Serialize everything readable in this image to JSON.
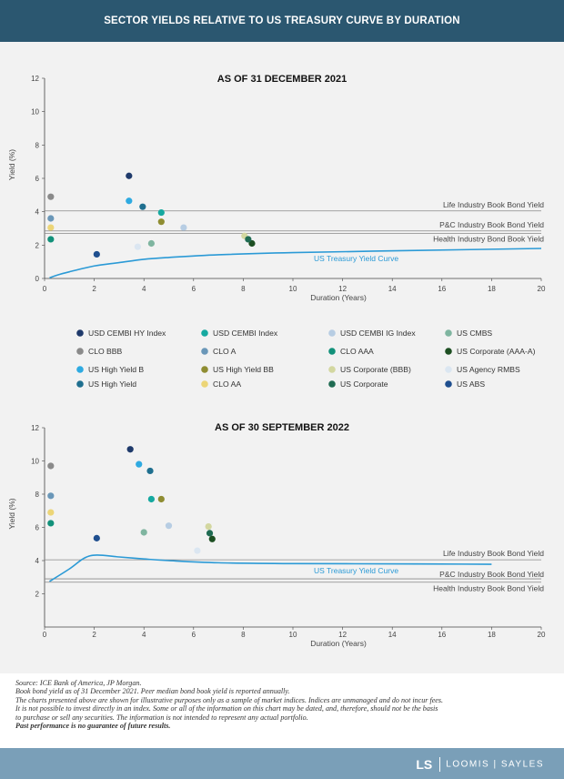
{
  "header": {
    "title": "SECTOR YIELDS RELATIVE TO US TREASURY CURVE BY DURATION"
  },
  "colors": {
    "header_bg": "#2b5770",
    "panel_bg": "#f2f2f2",
    "footer_bg": "#7a9fb8",
    "treasury_curve": "#2b9ad6",
    "reference_line": "#888888"
  },
  "sectors": [
    {
      "name": "USD CEMBI  HY Index",
      "color": "#1f3a6b"
    },
    {
      "name": "USD CEMBI Index",
      "color": "#16a9a0"
    },
    {
      "name": "USD CEMBI IG Index",
      "color": "#b7cde3"
    },
    {
      "name": "US CMBS",
      "color": "#7fb5a0"
    },
    {
      "name": "CLO BBB",
      "color": "#8a8a8a"
    },
    {
      "name": "CLO A",
      "color": "#6a97b8"
    },
    {
      "name": "CLO AAA",
      "color": "#12917a"
    },
    {
      "name": "US Corporate (AAA-A)",
      "color": "#1d4f22"
    },
    {
      "name": "US High Yield B",
      "color": "#2eaae1"
    },
    {
      "name": "US High Yield BB",
      "color": "#8f8d32"
    },
    {
      "name": "US Corporate (BBB)",
      "color": "#d3d7a0"
    },
    {
      "name": "US Agency RMBS",
      "color": "#dbe6f1"
    },
    {
      "name": "US High Yield",
      "color": "#1f6f8f"
    },
    {
      "name": "CLO AA",
      "color": "#ecd577"
    },
    {
      "name": "US Corporate",
      "color": "#1f6b52"
    },
    {
      "name": "US ABS",
      "color": "#1f4f8f"
    }
  ],
  "chart_data": [
    {
      "type": "scatter",
      "title": "AS OF 31 DECEMBER 2021",
      "xlabel": "Duration (Years)",
      "ylabel": "Yield (%)",
      "xlim": [
        0,
        20
      ],
      "ylim": [
        0,
        12
      ],
      "xticks": [
        "0",
        "2",
        "4",
        "6",
        "8",
        "10",
        "12",
        "14",
        "16",
        "18",
        "20"
      ],
      "yticks": [
        "0",
        "2",
        "4",
        "6",
        "8",
        "10",
        "12"
      ],
      "reference_lines": [
        {
          "label": "Life Industry Book Bond Yield",
          "y": 4.05
        },
        {
          "label": "P&C Industry Book Bond Yield",
          "y": 2.85
        },
        {
          "label": "Health Industry Bond Book Yield",
          "y": 2.7
        }
      ],
      "curve_label": "US Treasury Yield Curve",
      "treasury_curve": [
        [
          0.2,
          0.04
        ],
        [
          0.5,
          0.2
        ],
        [
          1,
          0.4
        ],
        [
          2,
          0.75
        ],
        [
          3,
          0.95
        ],
        [
          4,
          1.15
        ],
        [
          5,
          1.26
        ],
        [
          7,
          1.42
        ],
        [
          10,
          1.55
        ],
        [
          15,
          1.68
        ],
        [
          20,
          1.8
        ]
      ],
      "points": [
        {
          "sector": "USD CEMBI  HY Index",
          "x": 3.4,
          "y": 6.15
        },
        {
          "sector": "USD CEMBI Index",
          "x": 4.7,
          "y": 3.95
        },
        {
          "sector": "USD CEMBI IG Index",
          "x": 5.6,
          "y": 3.05
        },
        {
          "sector": "US CMBS",
          "x": 4.3,
          "y": 2.1
        },
        {
          "sector": "CLO BBB",
          "x": 0.25,
          "y": 4.9
        },
        {
          "sector": "CLO A",
          "x": 0.25,
          "y": 3.6
        },
        {
          "sector": "CLO AAA",
          "x": 0.25,
          "y": 2.35
        },
        {
          "sector": "US Corporate (AAA-A)",
          "x": 8.35,
          "y": 2.1
        },
        {
          "sector": "US High Yield B",
          "x": 3.4,
          "y": 4.65
        },
        {
          "sector": "US High Yield BB",
          "x": 4.7,
          "y": 3.4
        },
        {
          "sector": "US Corporate (BBB)",
          "x": 8.05,
          "y": 2.55
        },
        {
          "sector": "US Agency RMBS",
          "x": 3.75,
          "y": 1.9
        },
        {
          "sector": "US High Yield",
          "x": 3.95,
          "y": 4.3
        },
        {
          "sector": "CLO AA",
          "x": 0.25,
          "y": 3.05
        },
        {
          "sector": "US Corporate",
          "x": 8.2,
          "y": 2.35
        },
        {
          "sector": "US ABS",
          "x": 2.1,
          "y": 1.45
        }
      ]
    },
    {
      "type": "scatter",
      "title": "AS OF 30 SEPTEMBER 2022",
      "xlabel": "Duration (Years)",
      "ylabel": "Yield (%)",
      "xlim": [
        0,
        20
      ],
      "ylim": [
        0,
        12
      ],
      "xticks": [
        "0",
        "2",
        "4",
        "6",
        "8",
        "10",
        "12",
        "14",
        "16",
        "18",
        "20"
      ],
      "yticks": [
        "2",
        "4",
        "6",
        "8",
        "10",
        "12"
      ],
      "reference_lines": [
        {
          "label": "Life Industry Book Bond Yield",
          "y": 4.05
        },
        {
          "label": "P&C Industry Book Bond Yield",
          "y": 2.9
        },
        {
          "label": "Health Industry Book Bond Yield",
          "y": 2.7
        }
      ],
      "curve_label": "US Treasury Yield Curve",
      "treasury_curve": [
        [
          0.2,
          2.75
        ],
        [
          1,
          3.5
        ],
        [
          1.6,
          4.15
        ],
        [
          2.1,
          4.33
        ],
        [
          3,
          4.22
        ],
        [
          4,
          4.1
        ],
        [
          5,
          4.0
        ],
        [
          7,
          3.87
        ],
        [
          10,
          3.82
        ],
        [
          15,
          3.8
        ],
        [
          18,
          3.78
        ]
      ],
      "points": [
        {
          "sector": "USD CEMBI  HY Index",
          "x": 3.45,
          "y": 10.7
        },
        {
          "sector": "USD CEMBI Index",
          "x": 4.3,
          "y": 7.7
        },
        {
          "sector": "USD CEMBI IG Index",
          "x": 5.0,
          "y": 6.1
        },
        {
          "sector": "US CMBS",
          "x": 4.0,
          "y": 5.7
        },
        {
          "sector": "CLO BBB",
          "x": 0.25,
          "y": 9.7
        },
        {
          "sector": "CLO A",
          "x": 0.25,
          "y": 7.9
        },
        {
          "sector": "CLO AAA",
          "x": 0.25,
          "y": 6.25
        },
        {
          "sector": "US Corporate (AAA-A)",
          "x": 6.75,
          "y": 5.3
        },
        {
          "sector": "US High Yield B",
          "x": 3.8,
          "y": 9.8
        },
        {
          "sector": "US High Yield BB",
          "x": 4.7,
          "y": 7.7
        },
        {
          "sector": "US Corporate (BBB)",
          "x": 6.6,
          "y": 6.05
        },
        {
          "sector": "US Agency RMBS",
          "x": 6.15,
          "y": 4.6
        },
        {
          "sector": "US High Yield",
          "x": 4.25,
          "y": 9.4
        },
        {
          "sector": "CLO AA",
          "x": 0.25,
          "y": 6.9
        },
        {
          "sector": "US Corporate",
          "x": 6.65,
          "y": 5.65
        },
        {
          "sector": "US ABS",
          "x": 2.1,
          "y": 5.35
        }
      ]
    }
  ],
  "footnotes": {
    "source": "Source: ICE Bank of America, JP Morgan.",
    "line1": "Book bond yield as of 31 December 2021. Peer median bond book yield is reported annually.",
    "line2": "The charts presented above are shown for illustrative purposes only as a sample of market indices. Indices are unmanaged and do not incur fees.",
    "line3": "It is not possible to invest directly in an index. Some or all of the information on this chart may be dated, and, therefore, should not be the basis",
    "line4": "to purchase or sell any securities. The information is not intended to represent any actual portfolio.",
    "disclaimer": "Past performance is no guarantee of future results."
  },
  "footer": {
    "logo_mark": "LS",
    "logo_text": "LOOMIS | SAYLES"
  }
}
